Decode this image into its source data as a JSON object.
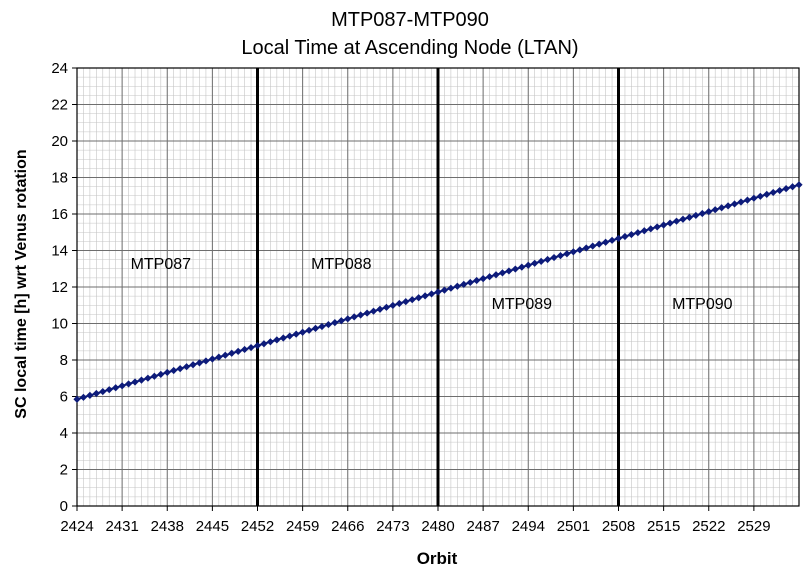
{
  "chart_data": {
    "type": "line",
    "title": "MTP087-MTP090",
    "subtitle": "Local Time at Ascending Node (LTAN)",
    "xlabel": "Orbit",
    "ylabel": "SC local time [h] wrt Venus rotation",
    "xlim": [
      2424,
      2536
    ],
    "ylim": [
      0,
      24
    ],
    "grid": true,
    "minor_grid": true,
    "legend": "none",
    "x_ticks": [
      2424,
      2431,
      2438,
      2445,
      2452,
      2459,
      2466,
      2473,
      2480,
      2487,
      2494,
      2501,
      2508,
      2515,
      2522,
      2529
    ],
    "y_ticks": [
      0,
      2,
      4,
      6,
      8,
      10,
      12,
      14,
      16,
      18,
      20,
      22,
      24
    ],
    "boundaries": [
      2452,
      2480,
      2508
    ],
    "annotations": [
      {
        "text": "MTP087",
        "x": 2437,
        "y": 13
      },
      {
        "text": "MTP088",
        "x": 2465,
        "y": 13
      },
      {
        "text": "MTP089",
        "x": 2493,
        "y": 10.8
      },
      {
        "text": "MTP090",
        "x": 2521,
        "y": 10.8
      }
    ],
    "series": [
      {
        "x_start": 2424,
        "x_end": 2536,
        "x_step": 1,
        "y_start": 5.85,
        "y_end": 17.6,
        "color": "#0d1b7a",
        "marker": "diamond"
      }
    ]
  }
}
